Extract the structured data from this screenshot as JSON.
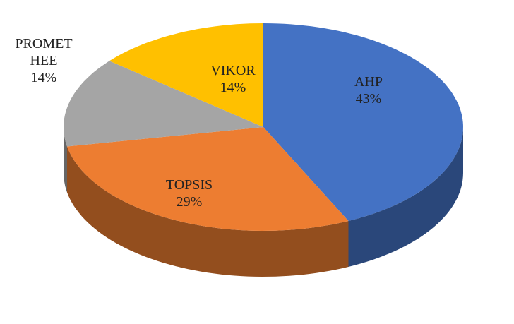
{
  "chart_data": {
    "type": "pie",
    "style": "3d",
    "categories": [
      "AHP",
      "TOPSIS",
      "PROMETHEE",
      "VIKOR"
    ],
    "values": [
      43,
      29,
      14,
      14
    ],
    "value_labels": [
      "43%",
      "29%",
      "14%",
      "14%"
    ],
    "colors": [
      "#4472c4",
      "#ed7d31",
      "#a5a5a5",
      "#ffc000"
    ]
  }
}
